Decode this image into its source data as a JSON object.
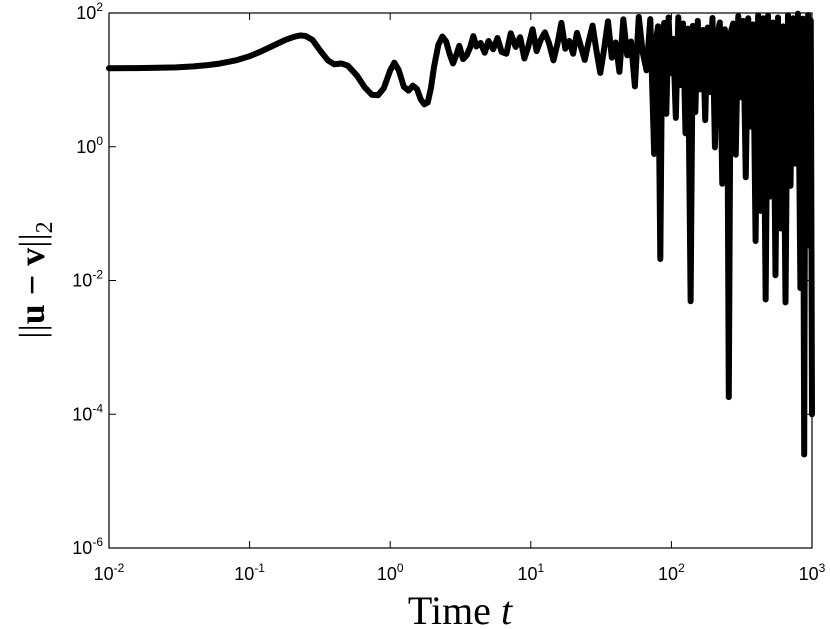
{
  "chart_data": {
    "type": "line",
    "xlabel": {
      "text": "Time ",
      "var": "t"
    },
    "ylabel": {
      "open": "||",
      "bold": "u − v",
      "close": "||",
      "sub": "2"
    },
    "x_scale": "log",
    "y_scale": "log",
    "xlim": [
      0.01,
      1000
    ],
    "ylim": [
      1e-06,
      100
    ],
    "grid": false,
    "x_ticks": [
      {
        "base": "10",
        "exp": "-2",
        "value": 0.01
      },
      {
        "base": "10",
        "exp": "-1",
        "value": 0.1
      },
      {
        "base": "10",
        "exp": "0",
        "value": 1
      },
      {
        "base": "10",
        "exp": "1",
        "value": 10
      },
      {
        "base": "10",
        "exp": "2",
        "value": 100
      },
      {
        "base": "10",
        "exp": "3",
        "value": 1000
      }
    ],
    "y_ticks": [
      {
        "base": "10",
        "exp": "-6",
        "value": 1e-06
      },
      {
        "base": "10",
        "exp": "-4",
        "value": 0.0001
      },
      {
        "base": "10",
        "exp": "-2",
        "value": 0.01
      },
      {
        "base": "10",
        "exp": "0",
        "value": 1
      },
      {
        "base": "10",
        "exp": "2",
        "value": 100
      }
    ],
    "series": [
      {
        "color": "#000000",
        "points": [
          [
            0.01,
            14.9
          ],
          [
            0.015,
            15.0
          ],
          [
            0.02,
            15.1
          ],
          [
            0.03,
            15.4
          ],
          [
            0.04,
            15.9
          ],
          [
            0.05,
            16.6
          ],
          [
            0.06,
            17.4
          ],
          [
            0.08,
            19.6
          ],
          [
            0.1,
            22.6
          ],
          [
            0.12,
            26.5
          ],
          [
            0.15,
            33.1
          ],
          [
            0.18,
            39.7
          ],
          [
            0.21,
            44.5
          ],
          [
            0.23,
            46.2
          ],
          [
            0.25,
            45.3
          ],
          [
            0.28,
            39.7
          ],
          [
            0.32,
            26.9
          ],
          [
            0.36,
            19.6
          ],
          [
            0.4,
            17.1
          ],
          [
            0.45,
            17.6
          ],
          [
            0.5,
            16.3
          ],
          [
            0.58,
            11.6
          ],
          [
            0.66,
            7.7
          ],
          [
            0.74,
            6.0
          ],
          [
            0.82,
            5.9
          ],
          [
            0.9,
            7.5
          ],
          [
            1.0,
            13.9
          ],
          [
            1.07,
            18.1
          ],
          [
            1.15,
            14.0
          ],
          [
            1.25,
            7.9
          ],
          [
            1.35,
            6.9
          ],
          [
            1.45,
            8.2
          ],
          [
            1.55,
            7.3
          ],
          [
            1.65,
            5.1
          ],
          [
            1.75,
            4.3
          ],
          [
            1.85,
            4.6
          ],
          [
            1.95,
            7.6
          ],
          [
            2.05,
            15.6
          ],
          [
            2.2,
            33.5
          ],
          [
            2.35,
            44.5
          ],
          [
            2.5,
            37.4
          ],
          [
            2.65,
            24.2
          ],
          [
            2.8,
            17.6
          ],
          [
            2.95,
            23.5
          ],
          [
            3.1,
            32.3
          ],
          [
            3.3,
            20.4
          ],
          [
            3.5,
            23.3
          ],
          [
            3.7,
            30.6
          ],
          [
            3.9,
            45.1
          ],
          [
            4.1,
            31.6
          ],
          [
            4.4,
            35.6
          ],
          [
            4.7,
            25.5
          ],
          [
            5.0,
            38.1
          ],
          [
            5.4,
            28.7
          ],
          [
            5.8,
            42.2
          ],
          [
            6.2,
            26.2
          ],
          [
            6.7,
            24.6
          ],
          [
            7.2,
            49.7
          ],
          [
            7.8,
            31.1
          ],
          [
            8.4,
            43.5
          ],
          [
            9.0,
            20.9
          ],
          [
            9.6,
            31.6
          ],
          [
            10.3,
            57.1
          ],
          [
            11,
            26.9
          ],
          [
            11.8,
            40.4
          ],
          [
            12.6,
            51.3
          ],
          [
            13.5,
            35.0
          ],
          [
            14.5,
            19.6
          ],
          [
            15.5,
            35.2
          ],
          [
            16.5,
            71.2
          ],
          [
            17.6,
            29.2
          ],
          [
            18.8,
            38.1
          ],
          [
            20,
            24.6
          ],
          [
            21.3,
            50.5
          ],
          [
            22.7,
            31.6
          ],
          [
            24.2,
            19.9
          ],
          [
            25.8,
            37.4
          ],
          [
            27.5,
            64.8
          ],
          [
            29.3,
            27.4
          ],
          [
            31.2,
            12.7
          ],
          [
            33.2,
            28.7
          ],
          [
            35.4,
            75.1
          ],
          [
            37.7,
            21.5
          ],
          [
            40.1,
            36.2
          ],
          [
            42.7,
            13.2
          ],
          [
            45.5,
            80.4
          ],
          [
            48.5,
            23.3
          ],
          [
            51.6,
            37.4
          ],
          [
            55,
            8.0
          ],
          [
            58.6,
            87.5
          ],
          [
            62.4,
            26.2
          ],
          [
            66.5,
            13.9
          ],
          [
            70.8,
            81.0
          ],
          [
            75.4,
            0.78
          ],
          [
            78,
            40.4
          ],
          [
            80.3,
            63.1
          ],
          [
            83.4,
            0.021
          ],
          [
            86,
            48.2
          ],
          [
            88.9,
            71.2
          ],
          [
            92,
            3.1
          ],
          [
            95.5,
            85.8
          ],
          [
            99,
            12.6
          ],
          [
            103,
            41.0
          ],
          [
            107.5,
            2.7
          ],
          [
            112,
            86.5
          ],
          [
            116.5,
            8.4
          ],
          [
            121,
            69.6
          ],
          [
            126,
            1.59
          ],
          [
            131,
            58.4
          ],
          [
            137,
            0.0049
          ],
          [
            142,
            64.3
          ],
          [
            148,
            3.3
          ],
          [
            154,
            76.3
          ],
          [
            160,
            7.2
          ],
          [
            167,
            55.8
          ],
          [
            174,
            2.5
          ],
          [
            181,
            60.7
          ],
          [
            188,
            6.6
          ],
          [
            196,
            84.2
          ],
          [
            204,
            0.98
          ],
          [
            212,
            45.3
          ],
          [
            221,
            72.2
          ],
          [
            230,
            0.28
          ],
          [
            240,
            57.1
          ],
          [
            250,
            8.3
          ],
          [
            256,
            0.00018
          ],
          [
            264,
            51.3
          ],
          [
            275,
            69.6
          ],
          [
            287,
            0.76
          ],
          [
            299,
            90.1
          ],
          [
            311,
            5.5
          ],
          [
            324,
            76.3
          ],
          [
            338,
            0.35
          ],
          [
            352,
            83.5
          ],
          [
            366,
            2.0
          ],
          [
            381,
            67.6
          ],
          [
            397,
            0.039
          ],
          [
            414,
            92.4
          ],
          [
            431,
            0.11
          ],
          [
            449,
            83.5
          ],
          [
            468,
            0.0052
          ],
          [
            487,
            90.9
          ],
          [
            507,
            0.18
          ],
          [
            528,
            72.2
          ],
          [
            550,
            0.012
          ],
          [
            573,
            85.8
          ],
          [
            597,
            0.06
          ],
          [
            622,
            63.1
          ],
          [
            648,
            0.0047
          ],
          [
            675,
            92.4
          ],
          [
            703,
            0.26
          ],
          [
            732,
            83.5
          ],
          [
            762,
            0.56
          ],
          [
            794,
            97.9
          ],
          [
            827,
            0.0077
          ],
          [
            861,
            82.4
          ],
          [
            880,
            2.5e-05
          ],
          [
            898,
            67.6
          ],
          [
            918,
            0.033
          ],
          [
            938,
            93.3
          ],
          [
            959,
            0.15
          ],
          [
            980,
            77.3
          ],
          [
            1000,
            0.0001
          ]
        ]
      }
    ]
  }
}
